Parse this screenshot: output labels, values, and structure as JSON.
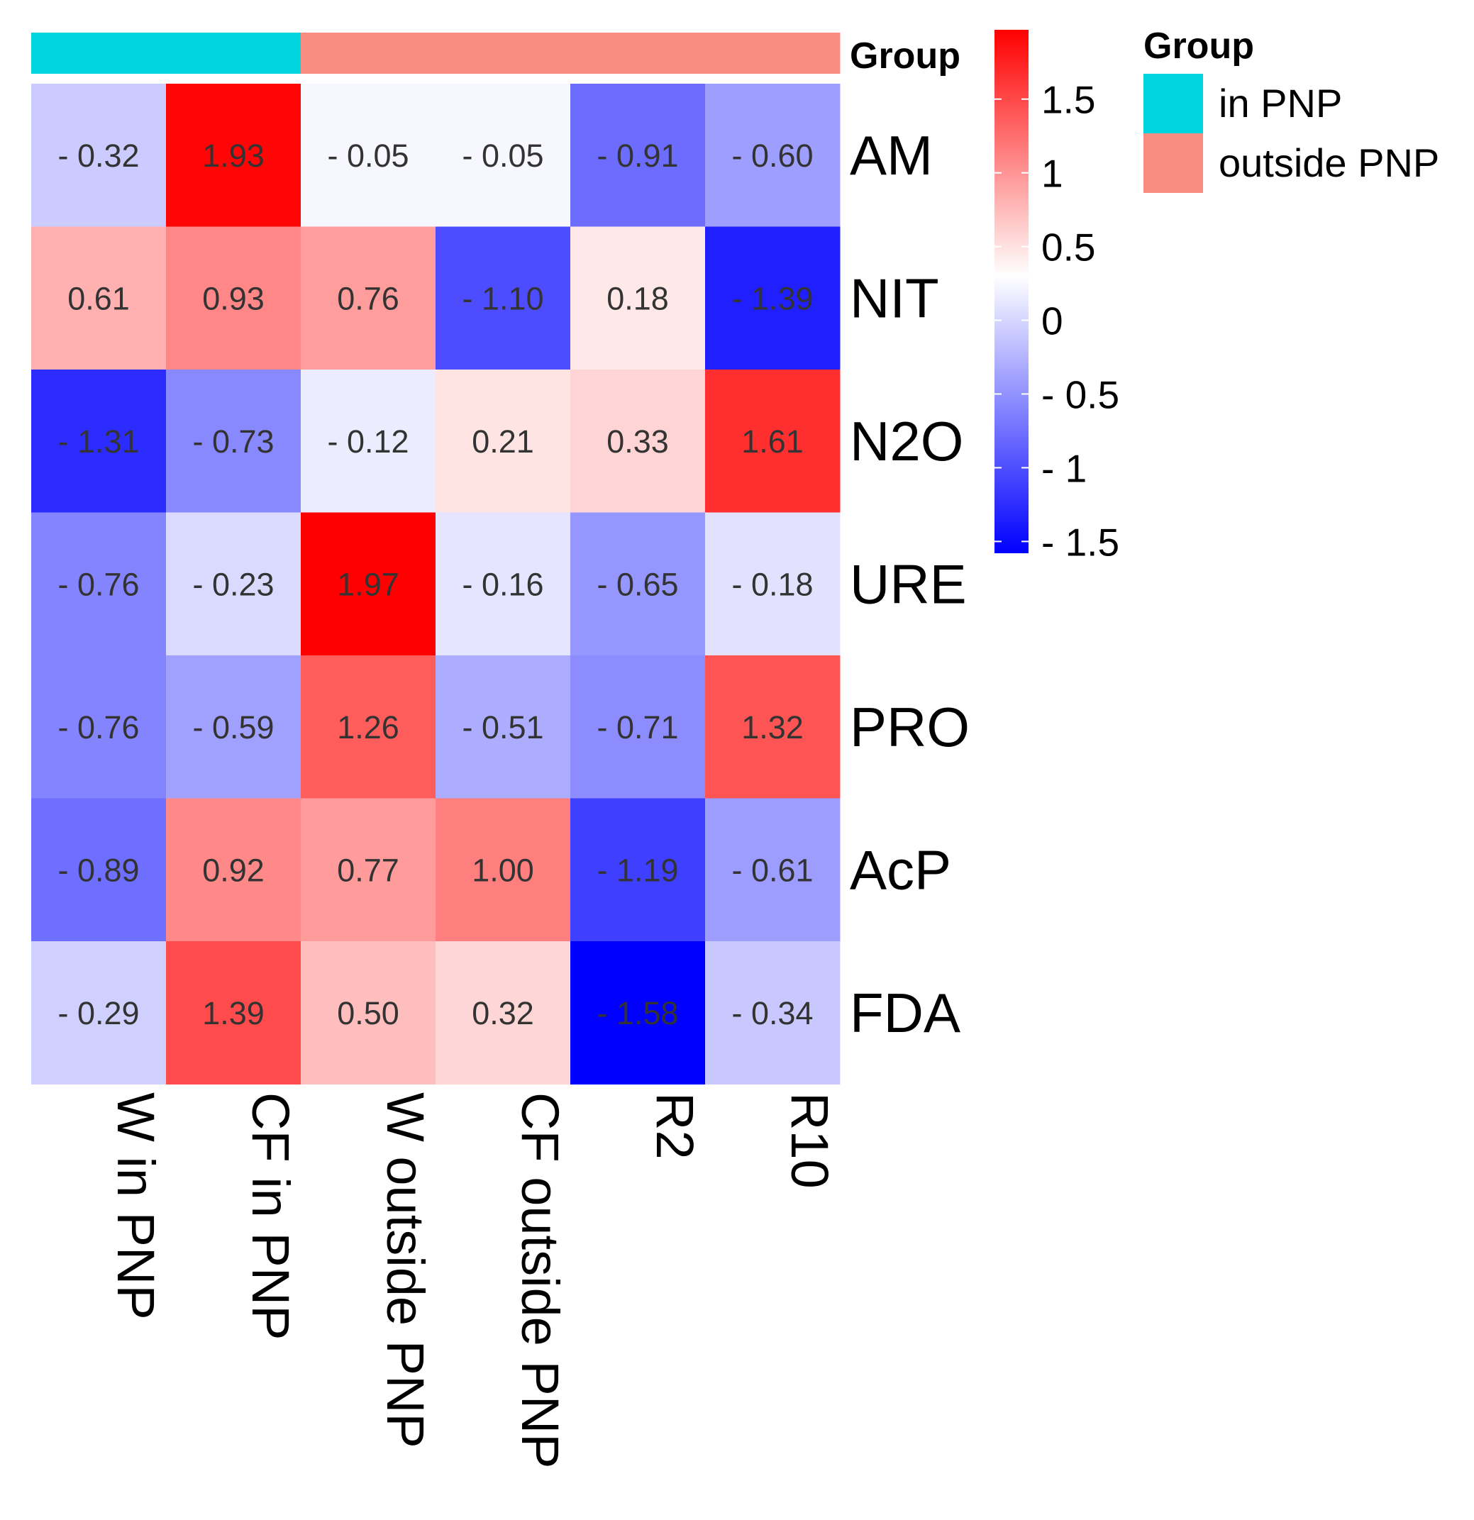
{
  "chart_data": {
    "type": "heatmap",
    "rows": [
      "AM",
      "NIT",
      "N2O",
      "URE",
      "PRO",
      "AcP",
      "FDA"
    ],
    "columns": [
      "W in PNP",
      "CF in PNP",
      "W outside PNP",
      "CF outside PNP",
      "R2",
      "R10"
    ],
    "value_labels": [
      [
        "- 0.32",
        "1.93",
        "- 0.05",
        "- 0.05",
        "- 0.91",
        "- 0.60"
      ],
      [
        "0.61",
        "0.93",
        "0.76",
        "- 1.10",
        "0.18",
        "- 1.39"
      ],
      [
        "- 1.31",
        "- 0.73",
        "- 0.12",
        "0.21",
        "0.33",
        "1.61"
      ],
      [
        "- 0.76",
        "- 0.23",
        "1.97",
        "- 0.16",
        "- 0.65",
        "- 0.18"
      ],
      [
        "- 0.76",
        "- 0.59",
        "1.26",
        "- 0.51",
        "- 0.71",
        "1.32"
      ],
      [
        "- 0.89",
        "0.92",
        "0.77",
        "1.00",
        "- 1.19",
        "- 0.61"
      ],
      [
        "- 0.29",
        "1.39",
        "0.50",
        "0.32",
        "- 1.58",
        "- 0.34"
      ]
    ],
    "column_groups": [
      "in PNP",
      "in PNP",
      "outside PNP",
      "outside PNP",
      "outside PNP",
      "outside PNP"
    ],
    "annotation_title": "Group",
    "legend_title": "Group",
    "legend_entries": [
      {
        "label": "in PNP",
        "color": "#00d4dc"
      },
      {
        "label": "outside PNP",
        "color": "#fa8c82"
      }
    ],
    "colorbar": {
      "range": [
        -1.58,
        1.97
      ],
      "ticks": [
        1.5,
        1,
        0.5,
        0,
        -0.5,
        -1,
        -1.5
      ],
      "tick_labels": [
        "1.5",
        "1",
        "0.5",
        "0",
        "- 0.5",
        "- 1",
        "- 1.5"
      ],
      "low_color": "#0000ff",
      "mid_color": "#ffffff",
      "high_color": "#ff0000"
    }
  }
}
